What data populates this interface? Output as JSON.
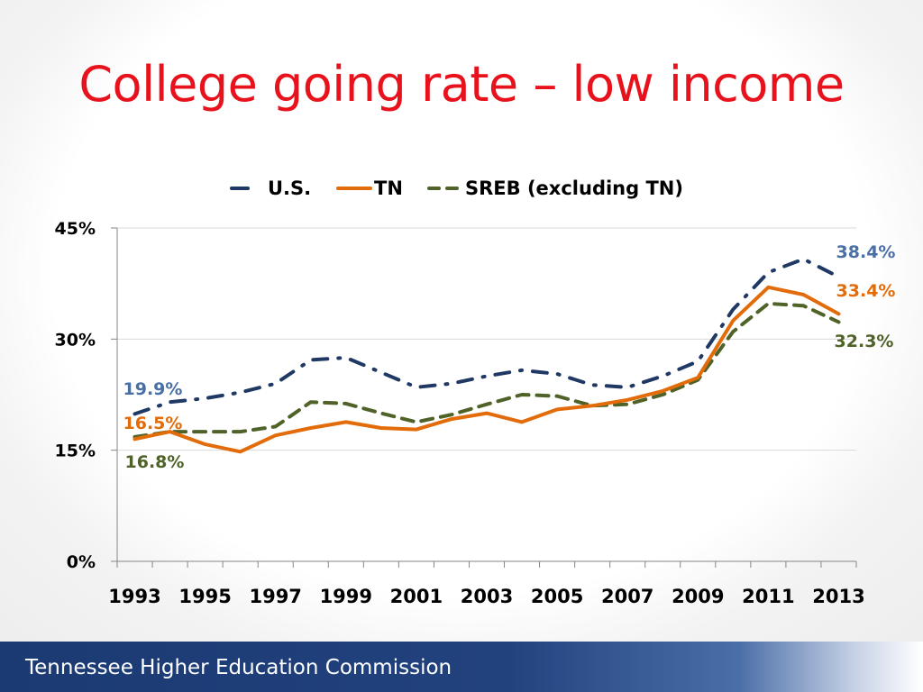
{
  "slide": {
    "title": "College going rate – low income",
    "footer": "Tennessee Higher Education Commission"
  },
  "chart_data": {
    "type": "line",
    "x": [
      1993,
      1994,
      1995,
      1996,
      1997,
      1998,
      1999,
      2000,
      2001,
      2002,
      2003,
      2004,
      2005,
      2006,
      2007,
      2008,
      2009,
      2010,
      2011,
      2012,
      2013
    ],
    "xticks": [
      "1993",
      "1995",
      "1997",
      "1999",
      "2001",
      "2003",
      "2005",
      "2007",
      "2009",
      "2011",
      "2013"
    ],
    "ylim": [
      0,
      45
    ],
    "yticks": [
      "0%",
      "15%",
      "30%",
      "45%"
    ],
    "ytick_values": [
      0,
      15,
      30,
      45
    ],
    "legend_position": "top",
    "grid": true,
    "series": [
      {
        "name": "U.S.",
        "color": "#1f3864",
        "style": "dashdot",
        "values": [
          19.9,
          21.5,
          22.0,
          22.8,
          24.0,
          27.2,
          27.5,
          25.5,
          23.5,
          24.0,
          25.0,
          25.8,
          25.3,
          23.8,
          23.5,
          25.0,
          27.0,
          34.0,
          39.0,
          40.8,
          38.4
        ],
        "label_first": "19.9%",
        "label_last": "38.4%",
        "label_color": "#4a6fa5"
      },
      {
        "name": "TN",
        "color": "#e36c0a",
        "style": "solid",
        "values": [
          16.5,
          17.5,
          15.8,
          14.8,
          17.0,
          18.0,
          18.8,
          18.0,
          17.8,
          19.2,
          20.0,
          18.8,
          20.5,
          21.0,
          21.8,
          23.0,
          24.8,
          32.5,
          37.0,
          36.0,
          33.4
        ],
        "label_first": "16.5%",
        "label_last": "33.4%",
        "label_color": "#e36c0a"
      },
      {
        "name": "SREB (excluding TN)",
        "color": "#4f6228",
        "style": "dashed",
        "values": [
          16.8,
          17.5,
          17.5,
          17.5,
          18.2,
          21.5,
          21.3,
          20.0,
          18.8,
          19.8,
          21.2,
          22.5,
          22.3,
          21.0,
          21.2,
          22.5,
          24.5,
          31.0,
          34.8,
          34.5,
          32.3
        ],
        "label_first": "16.8%",
        "label_last": "32.3%",
        "label_color": "#4f6228"
      }
    ]
  }
}
